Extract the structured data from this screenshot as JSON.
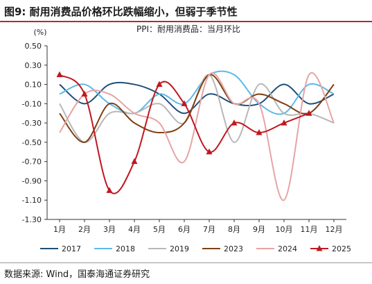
{
  "figure": {
    "title": "图9:  耐用消费品价格环比跌幅缩小，但弱于季节性",
    "source": "数据来源:  Wind，国泰海通证券研究"
  },
  "chart_data": {
    "type": "line",
    "title": "PPI：耐用消费品：当月环比",
    "ylabel": "(%)",
    "xlabel": "",
    "ylim": [
      -1.3,
      0.5
    ],
    "yticks": [
      0.5,
      0.3,
      0.1,
      -0.1,
      -0.3,
      -0.5,
      -0.7,
      -0.9,
      -1.1,
      -1.3
    ],
    "ytick_labels": [
      "0.50",
      "0.30",
      "0.10",
      "-0.10",
      "-0.30",
      "-0.50",
      "-0.70",
      "-0.90",
      "-1.10",
      "-1.30"
    ],
    "categories": [
      "1月",
      "2月",
      "3月",
      "4月",
      "5月",
      "6月",
      "7月",
      "8月",
      "9月",
      "10月",
      "11月",
      "12月"
    ],
    "grid": false,
    "legend_position": "bottom",
    "series": [
      {
        "name": "2017",
        "color": "#1f4e79",
        "values": [
          0.1,
          -0.1,
          0.1,
          0.1,
          0.0,
          -0.2,
          0.0,
          -0.1,
          -0.1,
          0.1,
          -0.1,
          0.0
        ]
      },
      {
        "name": "2018",
        "color": "#5bb9e6",
        "values": [
          0.0,
          0.1,
          -0.1,
          -0.2,
          0.0,
          -0.1,
          0.2,
          0.2,
          -0.1,
          -0.2,
          0.1,
          0.0
        ]
      },
      {
        "name": "2019",
        "color": "#b7b7b7",
        "values": [
          -0.1,
          -0.5,
          -0.2,
          -0.2,
          -0.1,
          -0.3,
          0.2,
          -0.5,
          0.1,
          -0.2,
          -0.2,
          -0.3
        ]
      },
      {
        "name": "2023",
        "color": "#7f3f12",
        "values": [
          -0.2,
          -0.5,
          -0.1,
          -0.3,
          -0.4,
          -0.3,
          0.2,
          -0.1,
          0.0,
          -0.1,
          -0.2,
          0.1
        ]
      },
      {
        "name": "2024",
        "color": "#e6a4a4",
        "values": [
          -0.4,
          0.0,
          0.0,
          -0.2,
          -0.3,
          -0.7,
          0.2,
          -0.1,
          -0.1,
          -1.1,
          0.2,
          -0.3
        ]
      },
      {
        "name": "2025",
        "color": "#c0171e",
        "values": [
          0.2,
          0.0,
          -1.0,
          -0.7,
          0.1,
          -0.1,
          -0.6,
          -0.3,
          -0.4,
          -0.3,
          -0.2,
          null
        ],
        "marker": "triangle"
      }
    ]
  }
}
